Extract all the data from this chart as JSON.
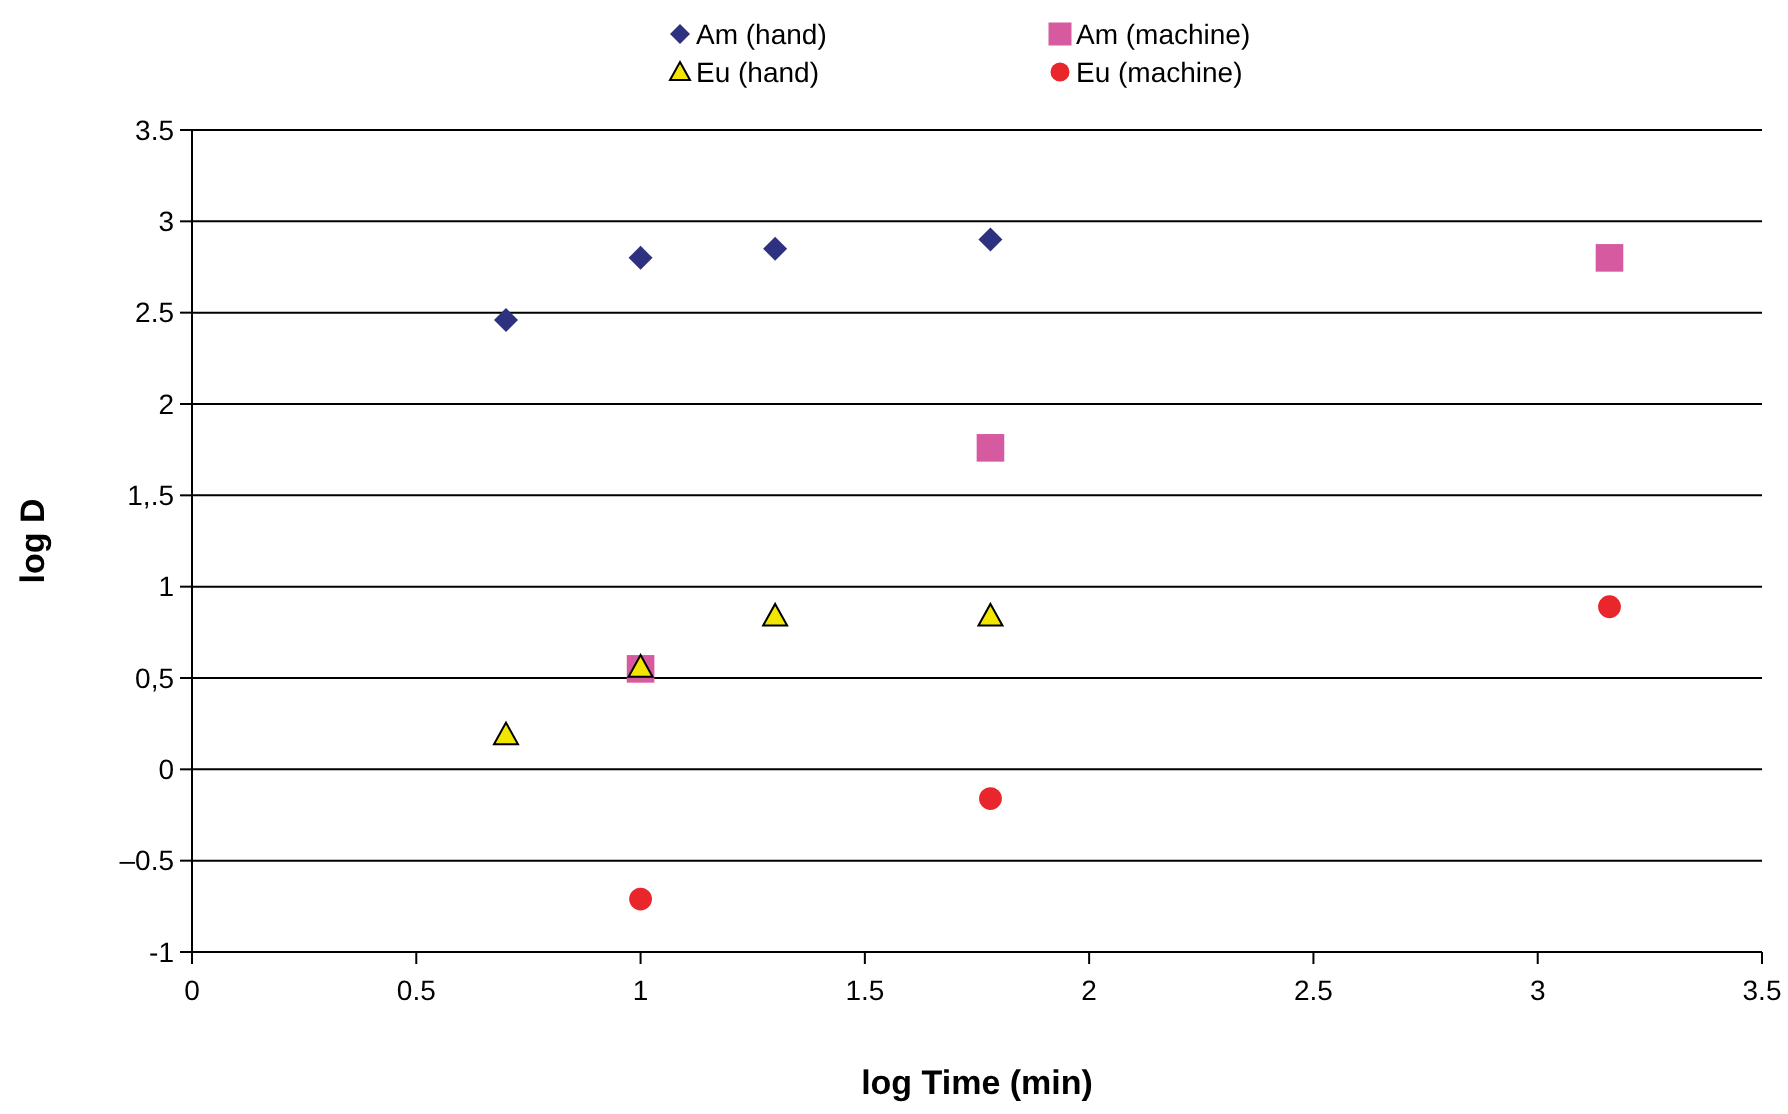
{
  "chart_data": {
    "type": "scatter",
    "xlabel": "log Time (min)",
    "ylabel": "log D",
    "xlim": [
      0,
      3.5
    ],
    "xticks": [
      0,
      0.5,
      1,
      1.5,
      2,
      2.5,
      3,
      3.5
    ],
    "ylim": [
      -1,
      3.5
    ],
    "yticks": [
      3.5,
      3,
      2.5,
      2,
      {
        "value": 1.5,
        "label": "1,.5"
      },
      1,
      {
        "value": 0.5,
        "label": "0,5"
      },
      0,
      {
        "value": -0.5,
        "label": "–0.5"
      },
      -1
    ],
    "grid": "y",
    "legend": "top",
    "series": [
      {
        "name": "Am (hand)",
        "color": "#2e3180",
        "marker": "diamond",
        "x": [
          0.7,
          1,
          1.3,
          1.78
        ],
        "values": [
          2.46,
          2.8,
          2.85,
          2.9
        ]
      },
      {
        "name": "Am (machine)",
        "color": "#d65aa0",
        "marker": "square",
        "x": [
          1,
          1.78,
          3.16
        ],
        "values": [
          0.55,
          1.76,
          2.8
        ]
      },
      {
        "name": "Eu (hand)",
        "color": "#f2e600",
        "marker": "triangle",
        "x": [
          0.7,
          1,
          1.3,
          1.78
        ],
        "values": [
          0.19,
          0.56,
          0.84,
          0.84
        ]
      },
      {
        "name": "Eu (machine)",
        "color": "#e8262b",
        "marker": "circle",
        "x": [
          1,
          1.78,
          3.16
        ],
        "values": [
          -0.71,
          -0.16,
          0.89
        ]
      }
    ]
  }
}
